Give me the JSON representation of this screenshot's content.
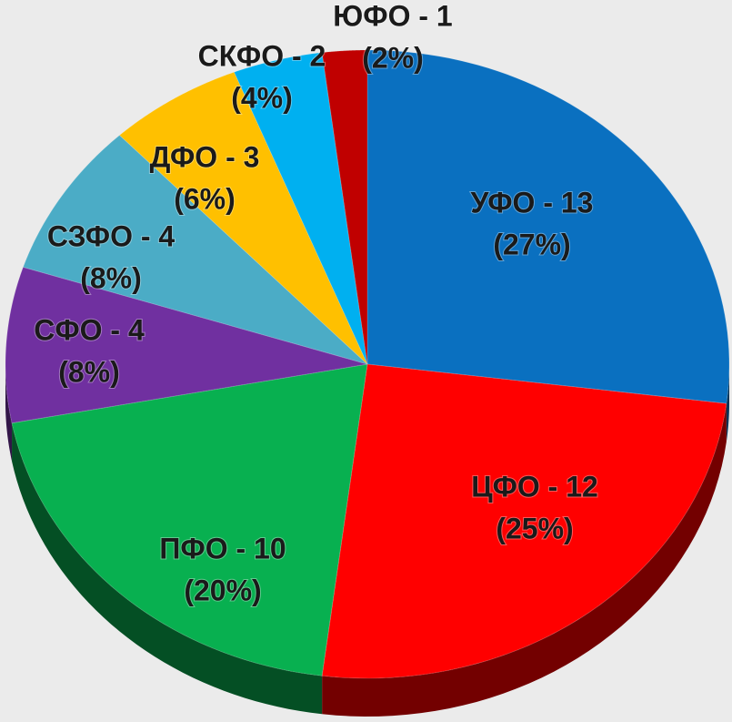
{
  "chart_data": {
    "type": "pie",
    "categories": [
      "УФО - 13",
      "ЦФО - 12",
      "ПФО - 10",
      "СФО - 4",
      "СЗФО - 4",
      "ДФО - 3",
      "СКФО - 2",
      "ЮФО - 1"
    ],
    "values": [
      27,
      25,
      20,
      8,
      8,
      6,
      4,
      2
    ],
    "value_labels": [
      "(27%)",
      "(25%)",
      "(20%)",
      "(8%)",
      "(8%)",
      "(6%)",
      "(4%)",
      "(2%)"
    ],
    "colors": [
      "#0a70c0",
      "#ff0000",
      "#08b050",
      "#7030a0",
      "#4bacc6",
      "#ffc000",
      "#00b0f0",
      "#c00000"
    ]
  }
}
